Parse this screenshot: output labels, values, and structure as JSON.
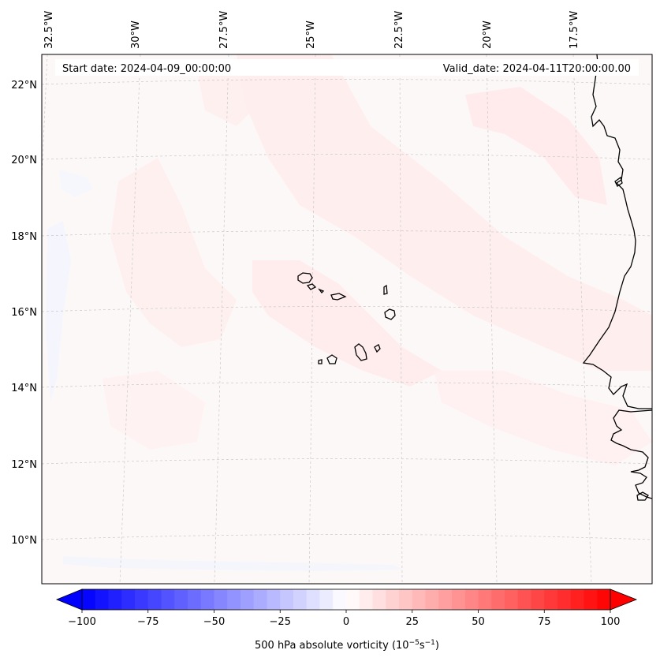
{
  "map": {
    "start_date": "Start date: 2024-04-09_00:00:00",
    "valid_date": "Valid_date: 2024-04-11T20:00:00.00",
    "lon_labels": [
      "32.5°W",
      "30°W",
      "27.5°W",
      "25°W",
      "22.5°W",
      "20°W",
      "17.5°W"
    ],
    "lat_labels": [
      "22°N",
      "20°N",
      "18°N",
      "16°N",
      "14°N",
      "12°N",
      "10°N"
    ],
    "field_description": "500 hPa absolute vorticity"
  },
  "colorbar": {
    "min": -100,
    "max": 100,
    "tick_labels": [
      "−100",
      "−75",
      "−50",
      "−25",
      "0",
      "25",
      "50",
      "75",
      "100"
    ],
    "label_main": "500 hPa absolute vorticity (10",
    "label_exp1": "−5",
    "label_mid": "s",
    "label_exp2": "−1",
    "label_end": ")"
  },
  "colors": {
    "negative_end": "#0000ff",
    "positive_end": "#ff0000",
    "zero": "#ffffff",
    "coastline": "#000000"
  }
}
